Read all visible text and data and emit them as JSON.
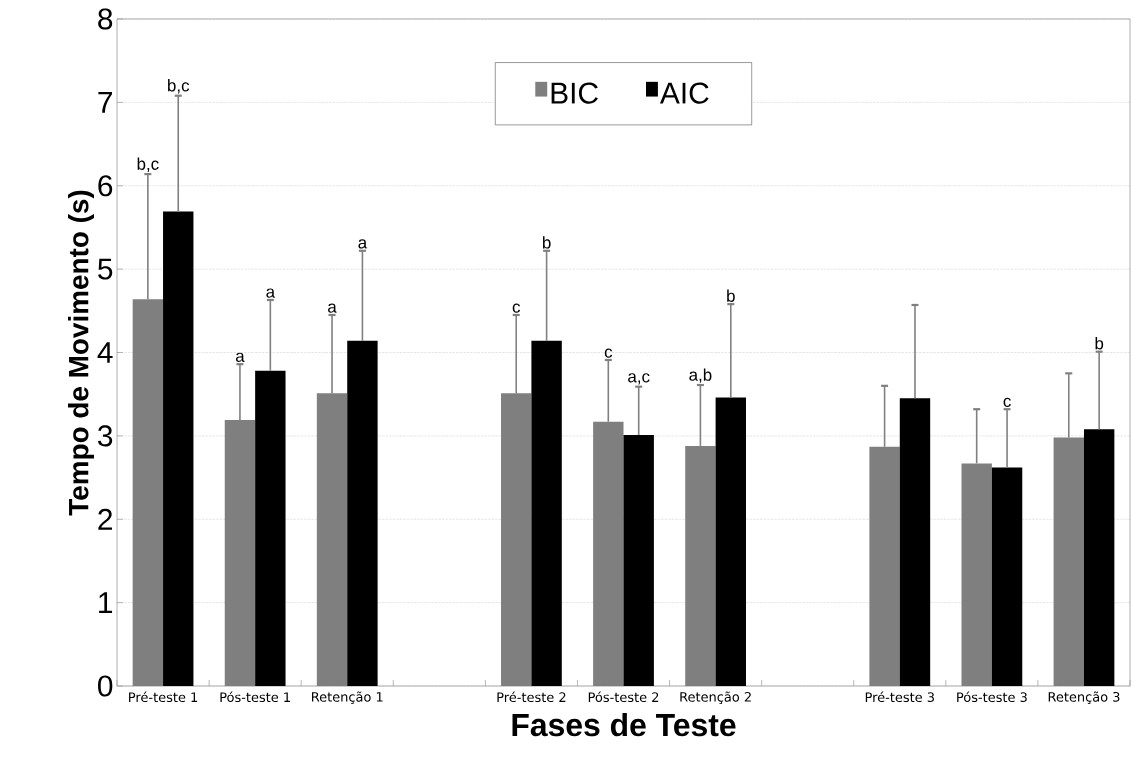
{
  "chart_data": {
    "type": "bar",
    "xlabel": "Fases de Teste",
    "ylabel": "Tempo de Movimento (s)",
    "categories": [
      "Pré-teste 1",
      "Pós-teste 1",
      "Retenção 1",
      null,
      "Pré-teste 2",
      "Pós-teste 2",
      "Retenção 2",
      null,
      "Pré-teste 3",
      "Pós-teste 3",
      "Retenção 3"
    ],
    "series": [
      {
        "name": "BIC",
        "color": "#7f7f7f",
        "values": [
          4.64,
          3.19,
          3.51,
          null,
          3.51,
          3.17,
          2.88,
          null,
          2.87,
          2.67,
          2.98
        ],
        "errors": [
          [
            4.64,
            6.14
          ],
          [
            3.19,
            3.86
          ],
          [
            3.51,
            4.45
          ],
          null,
          [
            3.51,
            4.45
          ],
          [
            3.17,
            3.91
          ],
          [
            2.88,
            3.61
          ],
          null,
          [
            2.87,
            3.6
          ],
          [
            2.67,
            3.32
          ],
          [
            2.98,
            3.75
          ]
        ]
      },
      {
        "name": "AIC",
        "color": "#000000",
        "values": [
          5.69,
          3.78,
          4.14,
          null,
          4.14,
          3.01,
          3.46,
          null,
          3.45,
          2.62,
          3.08
        ],
        "errors": [
          [
            5.69,
            7.08
          ],
          [
            3.78,
            4.63
          ],
          [
            4.14,
            5.22
          ],
          null,
          [
            4.14,
            5.22
          ],
          [
            3.01,
            3.59
          ],
          [
            3.46,
            4.58
          ],
          null,
          [
            3.45,
            4.57
          ],
          [
            2.62,
            3.32
          ],
          [
            3.08,
            4.01
          ]
        ]
      }
    ],
    "ylim": [
      0,
      8
    ],
    "yticks": [
      0,
      1,
      2,
      3,
      4,
      5,
      6,
      7,
      8
    ],
    "grid": "y",
    "legend": "top",
    "annotations": [
      "b,c",
      "b,c",
      "a",
      "a",
      "a",
      "a",
      "c",
      "b",
      "c",
      "a,c",
      "a,b",
      "b",
      "c",
      "b"
    ]
  }
}
